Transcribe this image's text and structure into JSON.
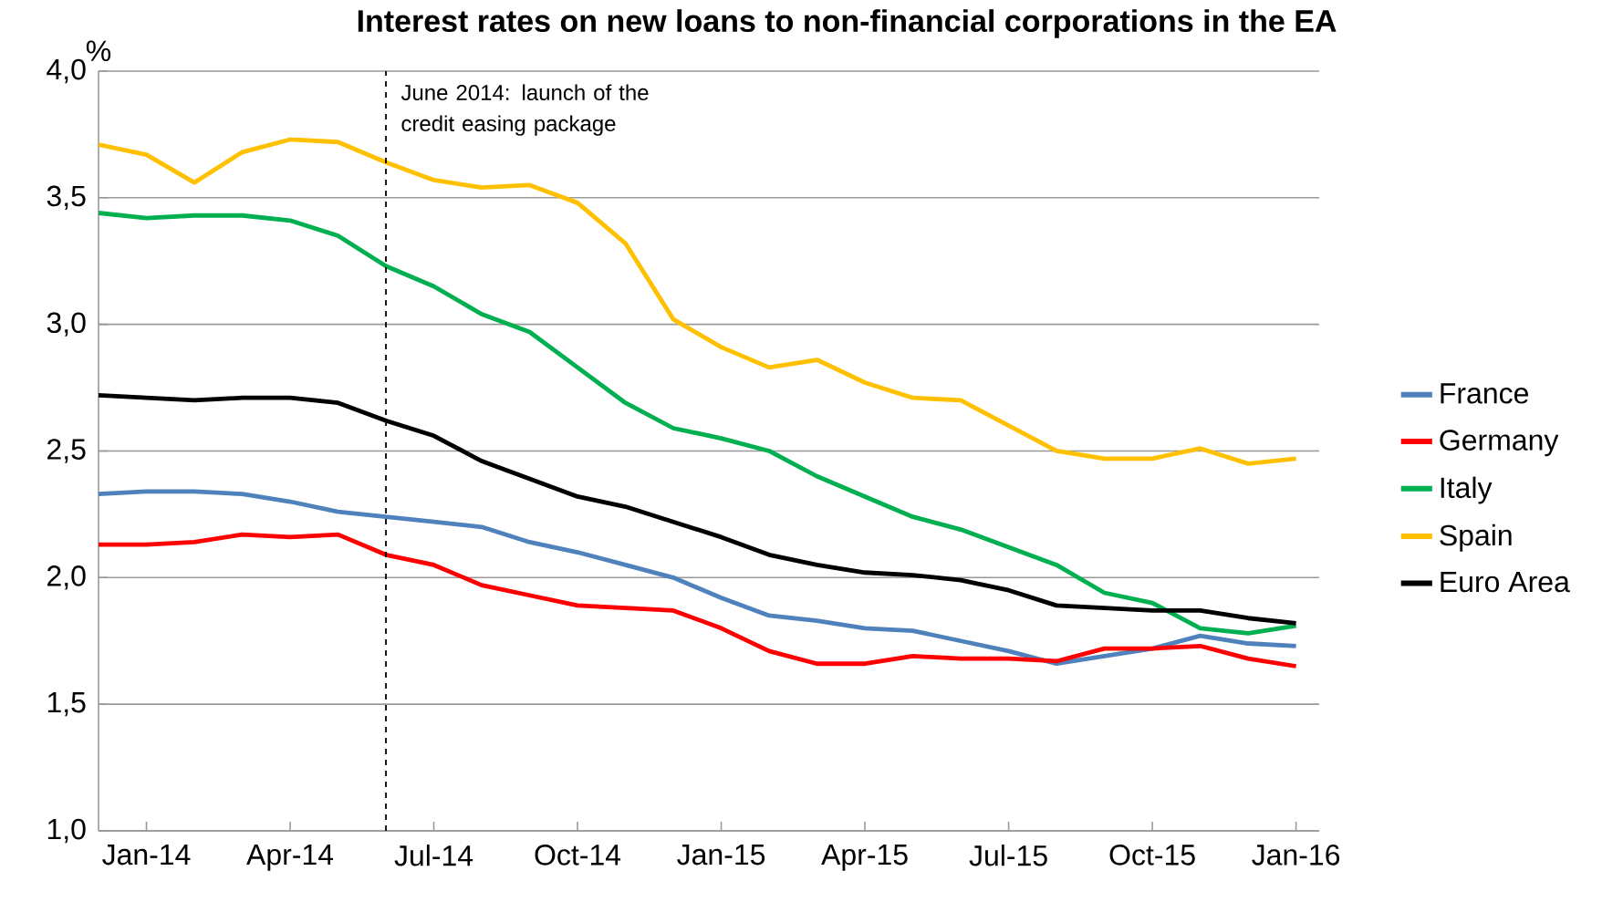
{
  "chart_data": {
    "type": "line",
    "title": "Interest rates on new loans to non-financial corporations in the EA",
    "ylabel": "%",
    "x": [
      "2013-12",
      "2014-01",
      "2014-02",
      "2014-03",
      "2014-04",
      "2014-05",
      "2014-06",
      "2014-07",
      "2014-08",
      "2014-09",
      "2014-10",
      "2014-11",
      "2014-12",
      "2015-01",
      "2015-02",
      "2015-03",
      "2015-04",
      "2015-05",
      "2015-06",
      "2015-07",
      "2015-08",
      "2015-09",
      "2015-10",
      "2015-11",
      "2015-12",
      "2016-01"
    ],
    "series": [
      {
        "name": "France",
        "color": "#4f81bd",
        "values": [
          2.33,
          2.34,
          2.34,
          2.33,
          2.3,
          2.26,
          2.24,
          2.22,
          2.2,
          2.14,
          2.1,
          2.05,
          2.0,
          1.92,
          1.85,
          1.83,
          1.8,
          1.79,
          1.75,
          1.71,
          1.66,
          1.69,
          1.72,
          1.77,
          1.74,
          1.73
        ]
      },
      {
        "name": "Germany",
        "color": "#ff0000",
        "values": [
          2.13,
          2.13,
          2.14,
          2.17,
          2.16,
          2.17,
          2.09,
          2.05,
          1.97,
          1.93,
          1.89,
          1.88,
          1.87,
          1.8,
          1.71,
          1.66,
          1.66,
          1.69,
          1.68,
          1.68,
          1.67,
          1.72,
          1.72,
          1.73,
          1.68,
          1.65
        ]
      },
      {
        "name": "Italy",
        "color": "#00b050",
        "values": [
          3.44,
          3.42,
          3.43,
          3.43,
          3.41,
          3.35,
          3.23,
          3.15,
          3.04,
          2.97,
          2.83,
          2.69,
          2.59,
          2.55,
          2.5,
          2.4,
          2.32,
          2.24,
          2.19,
          2.12,
          2.05,
          1.94,
          1.9,
          1.8,
          1.78,
          1.81
        ]
      },
      {
        "name": "Spain",
        "color": "#ffc000",
        "values": [
          3.71,
          3.67,
          3.56,
          3.68,
          3.73,
          3.72,
          3.64,
          3.57,
          3.54,
          3.55,
          3.48,
          3.32,
          3.02,
          2.91,
          2.83,
          2.86,
          2.77,
          2.71,
          2.7,
          2.6,
          2.5,
          2.47,
          2.47,
          2.51,
          2.45,
          2.47
        ]
      },
      {
        "name": "Euro Area",
        "color": "#000000",
        "values": [
          2.72,
          2.71,
          2.7,
          2.71,
          2.71,
          2.69,
          2.62,
          2.56,
          2.46,
          2.39,
          2.32,
          2.28,
          2.22,
          2.16,
          2.09,
          2.05,
          2.02,
          2.01,
          1.99,
          1.95,
          1.89,
          1.88,
          1.87,
          1.87,
          1.84,
          1.82
        ]
      }
    ],
    "xlim": [
      "2013-12",
      "2016-01-16"
    ],
    "xticks": [
      {
        "value": "2014-01",
        "label": "Jan-14"
      },
      {
        "value": "2014-04",
        "label": "Apr-14"
      },
      {
        "value": "2014-07",
        "label": "Jul-14"
      },
      {
        "value": "2014-10",
        "label": "Oct-14"
      },
      {
        "value": "2015-01",
        "label": "Jan-15"
      },
      {
        "value": "2015-04",
        "label": "Apr-15"
      },
      {
        "value": "2015-07",
        "label": "Jul-15"
      },
      {
        "value": "2015-10",
        "label": "Oct-15"
      },
      {
        "value": "2016-01",
        "label": "Jan-16"
      }
    ],
    "ylim": [
      1.0,
      4.0
    ],
    "yticks": [
      {
        "value": 1.0,
        "label": "1,0"
      },
      {
        "value": 1.5,
        "label": "1,5"
      },
      {
        "value": 2.0,
        "label": "2,0"
      },
      {
        "value": 2.5,
        "label": "2,5"
      },
      {
        "value": 3.0,
        "label": "3,0"
      },
      {
        "value": 3.5,
        "label": "3,5"
      },
      {
        "value": 4.0,
        "label": "4,0"
      }
    ],
    "ref_lines": [
      {
        "axis": "x",
        "value": "2014-06",
        "label": "June 2014: launch of the credit easing package",
        "color": "#000000",
        "line_style": "dashed"
      }
    ],
    "grid": "y",
    "legend": "right",
    "marker": "none",
    "line_style": "solid"
  }
}
